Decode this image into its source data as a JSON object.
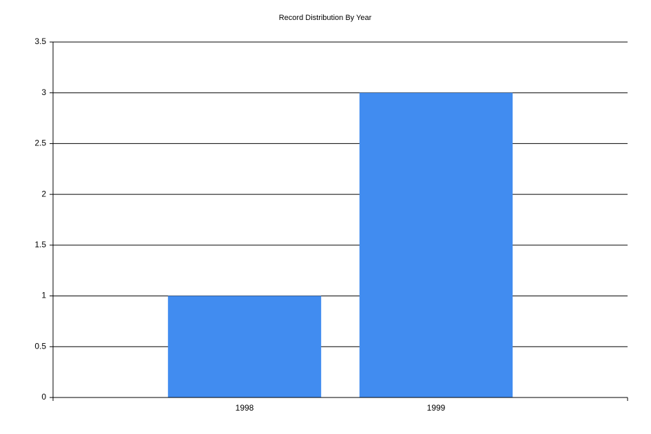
{
  "chart_data": {
    "type": "bar",
    "title": "Record Distribution By Year",
    "categories": [
      "1998",
      "1999"
    ],
    "values": [
      1,
      3
    ],
    "color": "#418cf0",
    "ylim": [
      0,
      3.5
    ],
    "yticks": [
      0,
      0.5,
      1,
      1.5,
      2,
      2.5,
      3,
      3.5
    ],
    "grid": true
  }
}
